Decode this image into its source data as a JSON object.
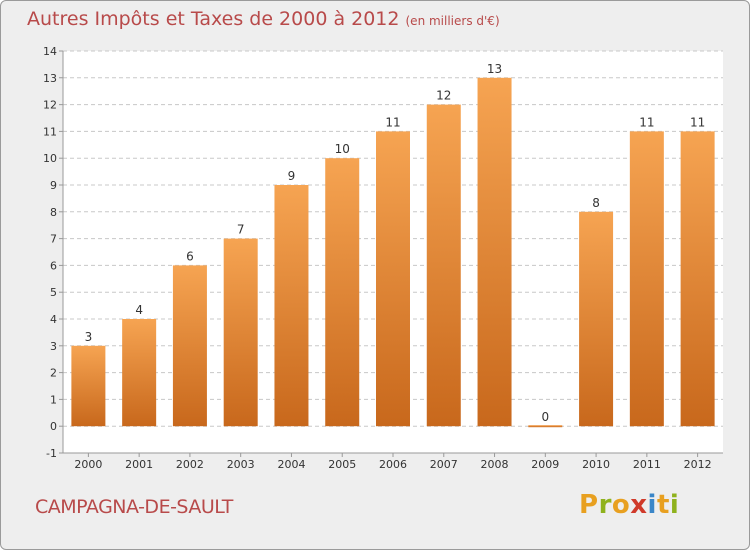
{
  "header": {
    "title": "Autres Impôts et Taxes de 2000 à 2012",
    "unit": "(en milliers d'€)"
  },
  "chart_data": {
    "type": "bar",
    "categories": [
      "2000",
      "2001",
      "2002",
      "2003",
      "2004",
      "2005",
      "2006",
      "2007",
      "2008",
      "2009",
      "2010",
      "2011",
      "2012"
    ],
    "values": [
      3,
      4,
      6,
      7,
      9,
      10,
      11,
      12,
      13,
      0,
      8,
      11,
      11
    ],
    "value_labels": [
      "3",
      "4",
      "6",
      "7",
      "9",
      "10",
      "11",
      "12",
      "13",
      "0",
      "8",
      "11",
      "11"
    ],
    "y_ticks": [
      "-1",
      "0",
      "1",
      "2",
      "3",
      "4",
      "5",
      "6",
      "7",
      "8",
      "9",
      "10",
      "11",
      "12",
      "13",
      "14"
    ],
    "ylim": [
      -1,
      14
    ],
    "grid": true,
    "colors": {
      "bar_top": "#f6a452",
      "bar_bottom": "#c8681c",
      "grid": "#c8c8c8"
    }
  },
  "footer": {
    "commune": "CAMPAGNA-DE-SAULT",
    "logo": {
      "letters": [
        "P",
        "r",
        "o",
        "x",
        "i",
        "t",
        "i"
      ],
      "colors": [
        "#e8a020",
        "#8fb21d",
        "#e8a020",
        "#d03a2a",
        "#3a86c8",
        "#e8a020",
        "#8fb21d"
      ]
    }
  }
}
